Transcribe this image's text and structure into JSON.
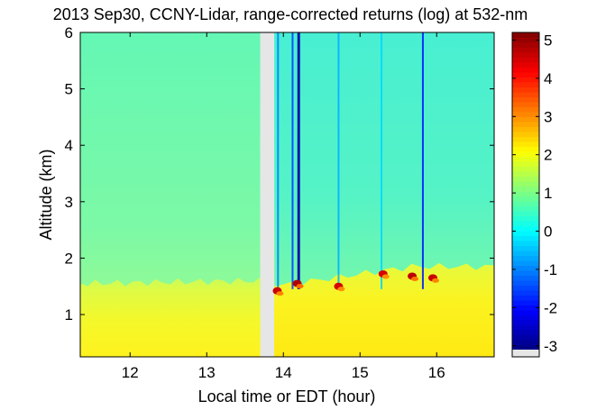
{
  "chart_data": {
    "type": "heatmap",
    "title": "2013 Sep30, CCNY-Lidar, range-corrected returns (log) at 532-nm",
    "xlabel": "Local time or EDT (hour)",
    "ylabel": "Altitude (km)",
    "xlim": [
      11.35,
      16.75
    ],
    "ylim": [
      0.25,
      6
    ],
    "xticks": [
      12,
      13,
      14,
      15,
      16
    ],
    "yticks": [
      1,
      2,
      3,
      4,
      5,
      6
    ],
    "colorbar": {
      "range": [
        -3.1,
        5.2
      ],
      "ticks": [
        -3,
        -2,
        -1,
        0,
        1,
        2,
        3,
        4,
        5
      ],
      "colormap": "jet",
      "nodata_color": "#e6e6e6"
    },
    "no_data_gaps": [
      [
        13.7,
        13.88
      ]
    ],
    "layers": [
      {
        "name_hint": "aerosol boundary layer (morning)",
        "x": [
          11.35,
          13.7
        ],
        "top_km": [
          1.55,
          1.6
        ],
        "value": 1.4
      },
      {
        "name_hint": "aerosol boundary layer (afternoon)",
        "x": [
          13.88,
          16.75
        ],
        "top_km": [
          1.5,
          1.85
        ],
        "value": 1.5
      },
      {
        "name_hint": "free troposphere",
        "x": [
          11.35,
          16.75
        ],
        "value": 0.7
      }
    ],
    "cloud_spots": [
      {
        "x": 13.92,
        "y": 1.42,
        "value": 4.6
      },
      {
        "x": 14.18,
        "y": 1.55,
        "value": 4.8
      },
      {
        "x": 14.72,
        "y": 1.5,
        "value": 4.5
      },
      {
        "x": 15.3,
        "y": 1.72,
        "value": 4.5
      },
      {
        "x": 15.68,
        "y": 1.68,
        "value": 4.7
      },
      {
        "x": 15.95,
        "y": 1.65,
        "value": 4.6
      }
    ],
    "vertical_streaks": [
      {
        "x": 13.93,
        "value": -1.0
      },
      {
        "x": 14.12,
        "value": -1.5
      },
      {
        "x": 14.2,
        "value": -2.8
      },
      {
        "x": 14.72,
        "value": -0.6
      },
      {
        "x": 15.28,
        "value": -0.3
      },
      {
        "x": 15.82,
        "value": -1.8
      }
    ]
  }
}
